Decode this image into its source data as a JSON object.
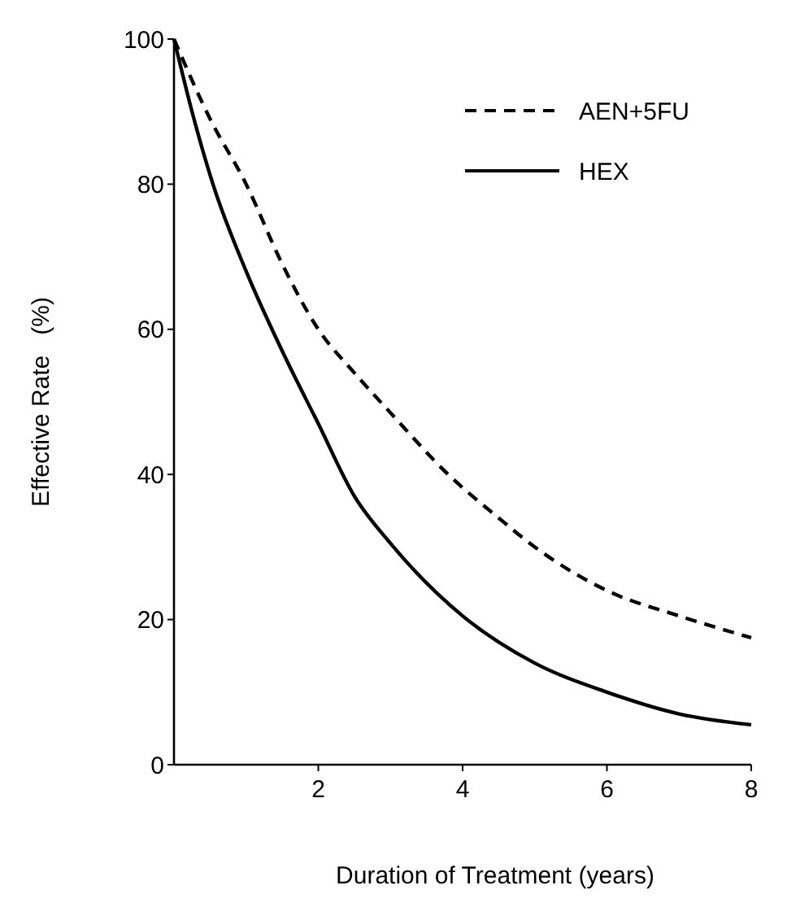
{
  "chart_data": {
    "type": "line",
    "xlabel": "Duration of Treatment (years)",
    "ylabel": "Effective Rate   (%)",
    "xlim": [
      0,
      8
    ],
    "xticks": [
      2,
      4,
      6,
      8
    ],
    "ylim": [
      0,
      100
    ],
    "yticks": [
      0,
      20,
      40,
      60,
      80,
      100
    ],
    "legend": "top right",
    "grid": false,
    "series": [
      {
        "name": "AEN+5FU",
        "color": "#000000",
        "line_style": "dashed",
        "x": [
          0,
          0.5,
          1,
          1.5,
          2,
          2.5,
          3,
          3.8,
          4.5,
          5,
          6,
          7,
          8
        ],
        "values": [
          100,
          89,
          80,
          69,
          60,
          54,
          48.5,
          40,
          34,
          30,
          24,
          20.5,
          17.5
        ]
      },
      {
        "name": "HEX",
        "color": "#000000",
        "line_style": "solid",
        "x": [
          0,
          0.25,
          0.54,
          1,
          1.5,
          2,
          2.5,
          3,
          4,
          5,
          6,
          7,
          8
        ],
        "values": [
          100,
          90,
          80,
          68,
          57,
          47,
          37,
          30.5,
          20.5,
          14,
          10,
          7,
          5.5
        ]
      }
    ]
  }
}
